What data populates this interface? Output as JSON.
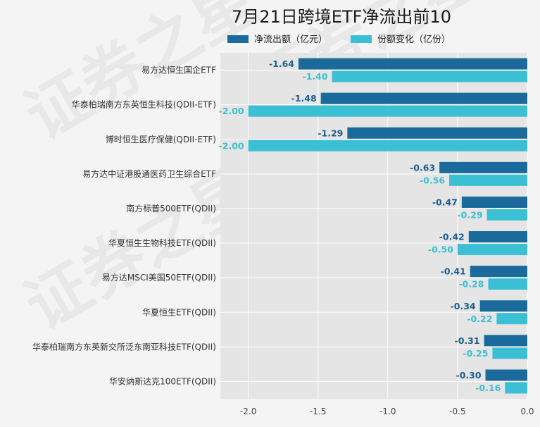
{
  "colors": {
    "background": "#f4f4f4",
    "plot_background": "#e5e5e5",
    "grid": "#ffffff",
    "series_outflow": "#1a6a9c",
    "series_shares": "#3bbfd4",
    "label_outflow": "#1a5f8e",
    "label_shares": "#3bbfd4"
  },
  "watermark": "证券之星",
  "chart_data": {
    "type": "bar",
    "orientation": "horizontal",
    "title": "7月21日跨境ETF净流出前10",
    "xlabel": "",
    "ylabel": "",
    "xlim": [
      -2.2,
      0.0
    ],
    "xticks": [
      -2.0,
      -1.5,
      -1.0,
      -0.5,
      0.0
    ],
    "xtick_labels": [
      "-2.0",
      "-1.5",
      "-1.0",
      "-0.5",
      "0.0"
    ],
    "grid": true,
    "legend": "top",
    "categories": [
      "易方达恒生国企ETF",
      "华泰柏瑞南方东英恒生科技(QDII-ETF)",
      "博时恒生医疗保健(QDII-ETF)",
      "易方达中证港股通医药卫生综合ETF",
      "南方标普500ETF(QDII)",
      "华夏恒生生物科技ETF(QDII)",
      "易方达MSCI美国50ETF(QDII)",
      "华夏恒生ETF(QDII)",
      "华泰柏瑞南方东英新交所泛东南亚科技ETF(QDII)",
      "华安纳斯达克100ETF(QDII)"
    ],
    "series": [
      {
        "name": "净流出额（亿元）",
        "values": [
          -1.64,
          -1.48,
          -1.29,
          -0.63,
          -0.47,
          -0.42,
          -0.41,
          -0.34,
          -0.31,
          -0.3
        ],
        "labels": [
          "-1.64",
          "-1.48",
          "-1.29",
          "-0.63",
          "-0.47",
          "-0.42",
          "-0.41",
          "-0.34",
          "-0.31",
          "-0.30"
        ]
      },
      {
        "name": "份额变化（亿份）",
        "values": [
          -1.4,
          -2.0,
          -2.0,
          -0.56,
          -0.29,
          -0.5,
          -0.28,
          -0.22,
          -0.25,
          -0.16
        ],
        "labels": [
          "-1.40",
          "-2.00",
          "-2.00",
          "-0.56",
          "-0.29",
          "-0.50",
          "-0.28",
          "-0.22",
          "-0.25",
          "-0.16"
        ]
      }
    ]
  }
}
